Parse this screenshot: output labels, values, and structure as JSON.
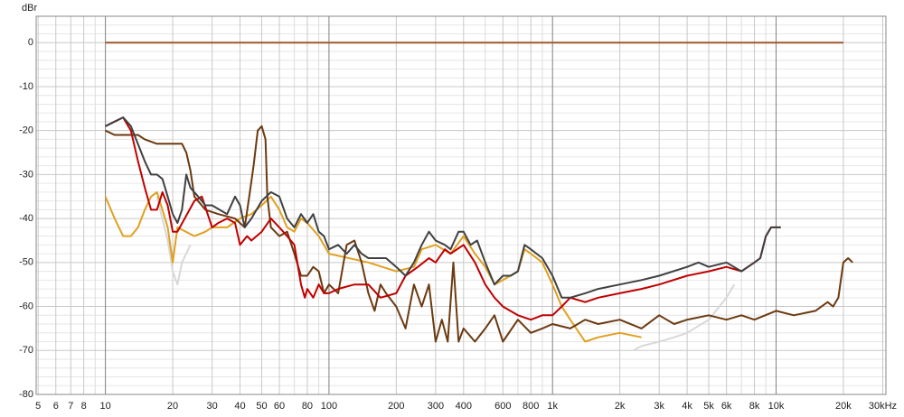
{
  "chart_data": {
    "type": "line",
    "y_label": "dBr",
    "log_x": true,
    "grid": true,
    "xlim": [
      4.9,
      31000
    ],
    "ylim": [
      -80,
      6
    ],
    "xticks": [
      5,
      6,
      7,
      8,
      10,
      20,
      30,
      40,
      50,
      60,
      80,
      100,
      200,
      300,
      400,
      600,
      800,
      {
        "value": 1000,
        "label": "1k"
      },
      {
        "value": 2000,
        "label": "2k"
      },
      {
        "value": 3000,
        "label": "3k"
      },
      {
        "value": 4000,
        "label": "4k"
      },
      {
        "value": 5000,
        "label": "5k"
      },
      {
        "value": 6000,
        "label": "6k"
      },
      {
        "value": 8000,
        "label": "8k"
      },
      {
        "value": 10000,
        "label": "10k"
      },
      {
        "value": 20000,
        "label": "20k"
      },
      {
        "value": 30000,
        "label": "30kHz"
      }
    ],
    "xminor": [
      9,
      70,
      90,
      500,
      700,
      900,
      7000,
      9000
    ],
    "yticks": [
      0,
      -10,
      -20,
      -30,
      -40,
      -50,
      -60,
      -70,
      -80
    ],
    "yminor": [
      4,
      2,
      -2,
      -4,
      -6,
      -8,
      -12,
      -14,
      -16,
      -18,
      -22,
      -24,
      -26,
      -28,
      -32,
      -34,
      -36,
      -38,
      -42,
      -44,
      -46,
      -48,
      -52,
      -54,
      -56,
      -58,
      -62,
      -64,
      -66,
      -68,
      -72,
      -74,
      -76,
      -78
    ],
    "series": [
      {
        "color": "#a0582a",
        "x": [
          10,
          20000
        ],
        "values": [
          0,
          0
        ]
      },
      {
        "color": "#d8d8d8",
        "x": [
          17,
          19,
          20,
          21,
          22,
          24,
          25,
          2300,
          2500,
          3000,
          3500,
          4000,
          5000,
          6000,
          6500
        ],
        "values": [
          -35,
          -45,
          -52,
          -55,
          -50,
          -46,
          null,
          -70,
          -69,
          -68,
          -67,
          -66,
          -63,
          -58,
          -55
        ]
      },
      {
        "color": "#e0a020",
        "x": [
          10,
          11,
          12,
          13,
          14,
          15,
          16,
          17,
          18,
          19,
          20,
          21,
          25,
          28,
          30,
          35,
          40,
          45,
          50,
          55,
          60,
          65,
          70,
          75,
          80,
          90,
          100,
          150,
          200,
          240,
          260,
          300,
          350,
          400,
          450,
          500,
          550,
          600,
          700,
          750,
          800,
          900,
          1000,
          1100,
          1200,
          1400,
          1600,
          2000,
          2500
        ],
        "values": [
          -35,
          -40,
          -44,
          -44,
          -42,
          -38,
          -35,
          -34,
          -38,
          -42,
          -50,
          -42,
          -44,
          -43,
          -42,
          -42,
          -40,
          -39,
          -37,
          -35,
          -38,
          -42,
          -43,
          -40,
          -41,
          -44,
          -48,
          -50,
          -52,
          -51,
          -47,
          -46,
          -48,
          -44,
          -48,
          -51,
          -55,
          -54,
          -52,
          -47,
          -48,
          -50,
          -55,
          -60,
          -63,
          -68,
          -67,
          -66,
          -67
        ]
      },
      {
        "color": "#6b3a10",
        "x": [
          10,
          11,
          14,
          15,
          17,
          20,
          22,
          23,
          24,
          25,
          28,
          32,
          38,
          42,
          44,
          46,
          48,
          50,
          52,
          53,
          55,
          60,
          65,
          70,
          75,
          80,
          85,
          90,
          95,
          100,
          110,
          120,
          130,
          140,
          150,
          160,
          170,
          180,
          200,
          220,
          240,
          260,
          280,
          300,
          320,
          340,
          360,
          380,
          400,
          450,
          500,
          550,
          600,
          700,
          800,
          900,
          1000,
          1200,
          1400,
          1600,
          2000,
          2500,
          3000,
          3500,
          4000,
          5000,
          6000,
          7000,
          8000,
          10000,
          12000,
          15000,
          17000,
          18000,
          19000,
          20000,
          21000,
          22000
        ],
        "values": [
          -20,
          -21,
          -21,
          -22,
          -23,
          -23,
          -23,
          -25,
          -29,
          -35,
          -38,
          -39,
          -40,
          -42,
          -35,
          -28,
          -20,
          -19,
          -22,
          -35,
          -42,
          -44,
          -43,
          -48,
          -53,
          -53,
          -51,
          -52,
          -57,
          -55,
          -57,
          -46,
          -45,
          -50,
          -57,
          -61,
          -55,
          -57,
          -60,
          -65,
          -55,
          -60,
          -55,
          -68,
          -63,
          -68,
          -50,
          -68,
          -65,
          -68,
          -65,
          -62,
          -68,
          -63,
          -66,
          -65,
          -64,
          -65,
          -63,
          -64,
          -63,
          -65,
          -62,
          -64,
          -63,
          -62,
          -63,
          -62,
          -63,
          -61,
          -62,
          -61,
          -59,
          -60,
          -58,
          -50,
          -49,
          -50
        ]
      },
      {
        "color": "#c00000",
        "x": [
          10,
          12,
          13,
          14,
          15,
          16,
          17,
          18,
          19,
          20,
          21,
          25,
          27,
          30,
          32,
          35,
          38,
          40,
          43,
          45,
          50,
          55,
          60,
          65,
          70,
          75,
          78,
          80,
          85,
          90,
          95,
          100,
          110,
          130,
          150,
          170,
          200,
          220,
          250,
          280,
          300,
          330,
          350,
          400,
          450,
          500,
          550,
          600,
          700,
          800,
          900,
          1000,
          1100,
          1200,
          1400,
          1600,
          2000,
          2500,
          3000,
          4000,
          5000,
          6000,
          7000,
          8000,
          8500,
          9000,
          9500,
          10500
        ],
        "values": [
          -19,
          -17,
          -20,
          -27,
          -33,
          -38,
          -38,
          -34,
          -37,
          -43,
          -43,
          -36,
          -35,
          -42,
          -41,
          -40,
          -41,
          -46,
          -44,
          -45,
          -43,
          -40,
          -42,
          -44,
          -46,
          -55,
          -58,
          -56,
          -58,
          -55,
          -57,
          -57,
          -56,
          -55,
          -55,
          -58,
          -57,
          -53,
          -51,
          -49,
          -50,
          -47,
          -48,
          -46,
          -50,
          -55,
          -58,
          -60,
          -62,
          -63,
          -62,
          -62,
          -60,
          -58,
          -59,
          -58,
          -57,
          -56,
          -55,
          -53,
          -52,
          -51,
          -52,
          -50,
          -49,
          -44,
          -42,
          -42
        ]
      },
      {
        "color": "#404040",
        "x": [
          10,
          12,
          13,
          15,
          16,
          17,
          18,
          19,
          20,
          21,
          22,
          23,
          24,
          26,
          28,
          30,
          35,
          38,
          40,
          42,
          45,
          50,
          55,
          60,
          65,
          70,
          75,
          80,
          85,
          90,
          95,
          100,
          110,
          120,
          130,
          140,
          150,
          160,
          180,
          200,
          220,
          240,
          260,
          280,
          300,
          330,
          350,
          380,
          400,
          430,
          460,
          500,
          550,
          600,
          650,
          700,
          750,
          800,
          900,
          1000,
          1100,
          1200,
          1400,
          1600,
          2000,
          2500,
          3000,
          4000,
          4500,
          5000,
          6000,
          7000,
          8000,
          8500,
          9000,
          9500,
          10500
        ],
        "values": [
          -19,
          -17,
          -19,
          -27,
          -30,
          -30,
          -31,
          -35,
          -39,
          -41,
          -38,
          -30,
          -33,
          -35,
          -37,
          -37,
          -39,
          -35,
          -37,
          -42,
          -40,
          -36,
          -34,
          -35,
          -40,
          -42,
          -39,
          -41,
          -39,
          -43,
          -44,
          -47,
          -46,
          -48,
          -46,
          -48,
          -49,
          -49,
          -49,
          -51,
          -53,
          -50,
          -46,
          -43,
          -45,
          -46,
          -47,
          -43,
          -43,
          -46,
          -45,
          -50,
          -55,
          -53,
          -53,
          -52,
          -46,
          -47,
          -49,
          -53,
          -58,
          -58,
          -57,
          -56,
          -55,
          -54,
          -53,
          -51,
          -50,
          -51,
          -50,
          -52,
          -50,
          -49,
          -44,
          -42,
          -42
        ]
      }
    ]
  }
}
